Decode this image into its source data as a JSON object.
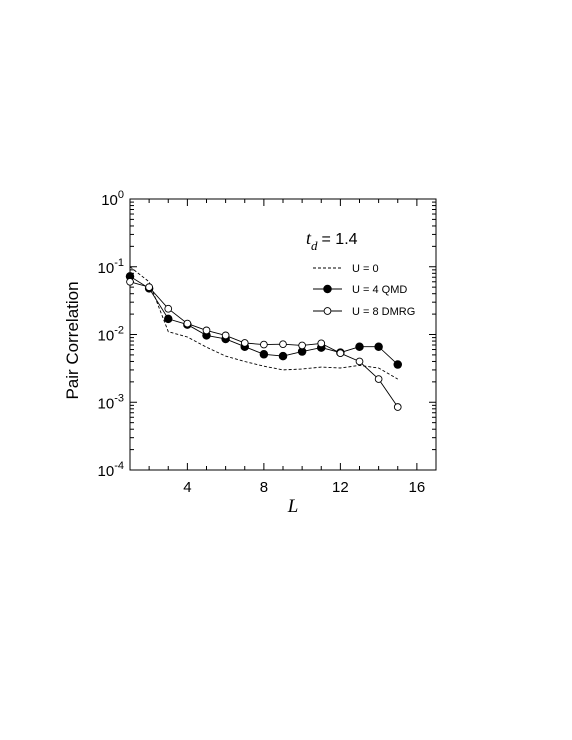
{
  "chart_data": {
    "type": "line",
    "xlabel": "L",
    "ylabel": "Pair Correlation",
    "xlim": [
      1,
      17
    ],
    "ylim": [
      0.0001,
      1
    ],
    "yscale": "log",
    "x_ticks": [
      {
        "value": 4,
        "label": "4"
      },
      {
        "value": 8,
        "label": "8"
      },
      {
        "value": 12,
        "label": "12"
      },
      {
        "value": 16,
        "label": "16"
      }
    ],
    "y_ticks": [
      {
        "value": 1,
        "base": "10",
        "exp": "0"
      },
      {
        "value": 0.1,
        "base": "10",
        "exp": "-1"
      },
      {
        "value": 0.01,
        "base": "10",
        "exp": "-2"
      },
      {
        "value": 0.001,
        "base": "10",
        "exp": "-3"
      },
      {
        "value": 0.0001,
        "base": "10",
        "exp": "-4"
      }
    ],
    "annotation": {
      "symbol": "t",
      "subscript": "d",
      "value": "=  1.4"
    },
    "legend_position": "top-right",
    "series": [
      {
        "name": "U = 0",
        "style": "dashed",
        "marker": "none",
        "x": [
          1,
          2,
          3,
          4,
          5,
          6,
          7,
          8,
          9,
          10,
          11,
          12,
          13,
          14,
          15
        ],
        "y": [
          0.1,
          0.06,
          0.011,
          0.0092,
          0.0065,
          0.0048,
          0.004,
          0.0034,
          0.003,
          0.0031,
          0.0033,
          0.0032,
          0.0035,
          0.0032,
          0.0022
        ]
      },
      {
        "name": "U = 4 QMD",
        "style": "solid",
        "marker": "filled-circle",
        "x": [
          1,
          2,
          3,
          4,
          5,
          6,
          7,
          8,
          9,
          10,
          11,
          12,
          13,
          14,
          15
        ],
        "y": [
          0.072,
          0.048,
          0.017,
          0.014,
          0.0097,
          0.0086,
          0.0066,
          0.0051,
          0.0048,
          0.0056,
          0.0064,
          0.0054,
          0.0066,
          0.0066,
          0.0036
        ]
      },
      {
        "name": "U = 8 DMRG",
        "style": "solid",
        "marker": "open-circle",
        "x": [
          1,
          2,
          3,
          4,
          5,
          6,
          7,
          8,
          9,
          10,
          11,
          12,
          13,
          14,
          15
        ],
        "y": [
          0.06,
          0.05,
          0.024,
          0.0145,
          0.0115,
          0.0097,
          0.0075,
          0.0071,
          0.0072,
          0.0069,
          0.0074,
          0.0053,
          0.004,
          0.0022,
          0.00085
        ]
      }
    ]
  }
}
